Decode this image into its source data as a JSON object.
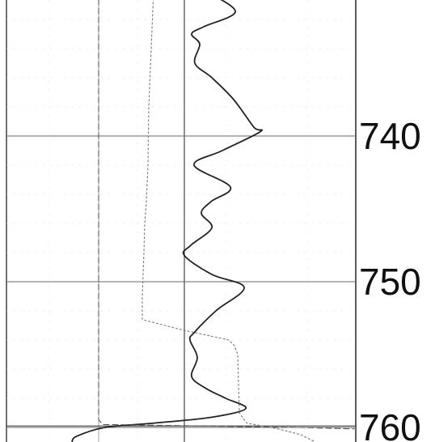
{
  "chart_data": {
    "type": "line",
    "title": "",
    "xlabel": "",
    "ylabel": "",
    "ylim": [
      730,
      762
    ],
    "y_direction": "increasing-downward",
    "grid": true,
    "y_ticks": [
      {
        "value": 740,
        "label": "740"
      },
      {
        "value": 750,
        "label": "750"
      },
      {
        "value": 760,
        "label": "760"
      }
    ],
    "series": [
      {
        "style": "solid",
        "color": "#222222",
        "points": [
          {
            "depth": 730.3,
            "x": 263
          },
          {
            "depth": 731.5,
            "x": 291
          },
          {
            "depth": 732.5,
            "x": 252
          },
          {
            "depth": 733.0,
            "x": 237
          },
          {
            "depth": 733.7,
            "x": 247
          },
          {
            "depth": 735.0,
            "x": 241
          },
          {
            "depth": 736.0,
            "x": 262
          },
          {
            "depth": 737.5,
            "x": 289
          },
          {
            "depth": 739.4,
            "x": 314
          },
          {
            "depth": 739.7,
            "x": 322
          },
          {
            "depth": 741.0,
            "x": 275
          },
          {
            "depth": 742.0,
            "x": 240
          },
          {
            "depth": 743.5,
            "x": 285
          },
          {
            "depth": 744.5,
            "x": 261
          },
          {
            "depth": 745.3,
            "x": 249
          },
          {
            "depth": 746.3,
            "x": 262
          },
          {
            "depth": 747.5,
            "x": 236
          },
          {
            "depth": 748.2,
            "x": 228
          },
          {
            "depth": 749.5,
            "x": 262
          },
          {
            "depth": 750.4,
            "x": 302
          },
          {
            "depth": 752.0,
            "x": 267
          },
          {
            "depth": 753.5,
            "x": 240
          },
          {
            "depth": 754.0,
            "x": 235
          },
          {
            "depth": 755.2,
            "x": 244
          },
          {
            "depth": 756.5,
            "x": 237
          },
          {
            "depth": 757.3,
            "x": 254
          },
          {
            "depth": 758.0,
            "x": 279
          },
          {
            "depth": 758.7,
            "x": 304
          },
          {
            "depth": 759.3,
            "x": 262
          },
          {
            "depth": 759.7,
            "x": 191
          },
          {
            "depth": 760.0,
            "x": 130
          },
          {
            "depth": 760.6,
            "x": 95
          },
          {
            "depth": 761.0,
            "x": 89
          }
        ]
      },
      {
        "style": "dotted",
        "color": "#777777",
        "points": [
          {
            "depth": 730.0,
            "x": 190
          },
          {
            "depth": 734.0,
            "x": 187
          },
          {
            "depth": 738.0,
            "x": 184
          },
          {
            "depth": 742.0,
            "x": 183
          },
          {
            "depth": 744.5,
            "x": 181
          },
          {
            "depth": 746.0,
            "x": 179
          },
          {
            "depth": 748.0,
            "x": 178
          },
          {
            "depth": 751.0,
            "x": 176
          },
          {
            "depth": 752.6,
            "x": 176
          },
          {
            "depth": 753.3,
            "x": 225
          },
          {
            "depth": 754.0,
            "x": 283
          },
          {
            "depth": 754.4,
            "x": 290
          },
          {
            "depth": 755.0,
            "x": 294
          },
          {
            "depth": 757.0,
            "x": 295
          },
          {
            "depth": 759.0,
            "x": 296
          },
          {
            "depth": 759.7,
            "x": 305
          },
          {
            "depth": 760.1,
            "x": 344
          },
          {
            "depth": 760.5,
            "x": 372
          },
          {
            "depth": 761.0,
            "x": 390
          }
        ]
      },
      {
        "style": "dashed",
        "color": "#555555",
        "points": [
          {
            "depth": 730.0,
            "x": 122
          },
          {
            "depth": 759.5,
            "x": 122
          },
          {
            "depth": 759.8,
            "x": 128
          },
          {
            "depth": 760.0,
            "x": 370
          },
          {
            "depth": 760.1,
            "x": 438
          }
        ]
      }
    ]
  }
}
